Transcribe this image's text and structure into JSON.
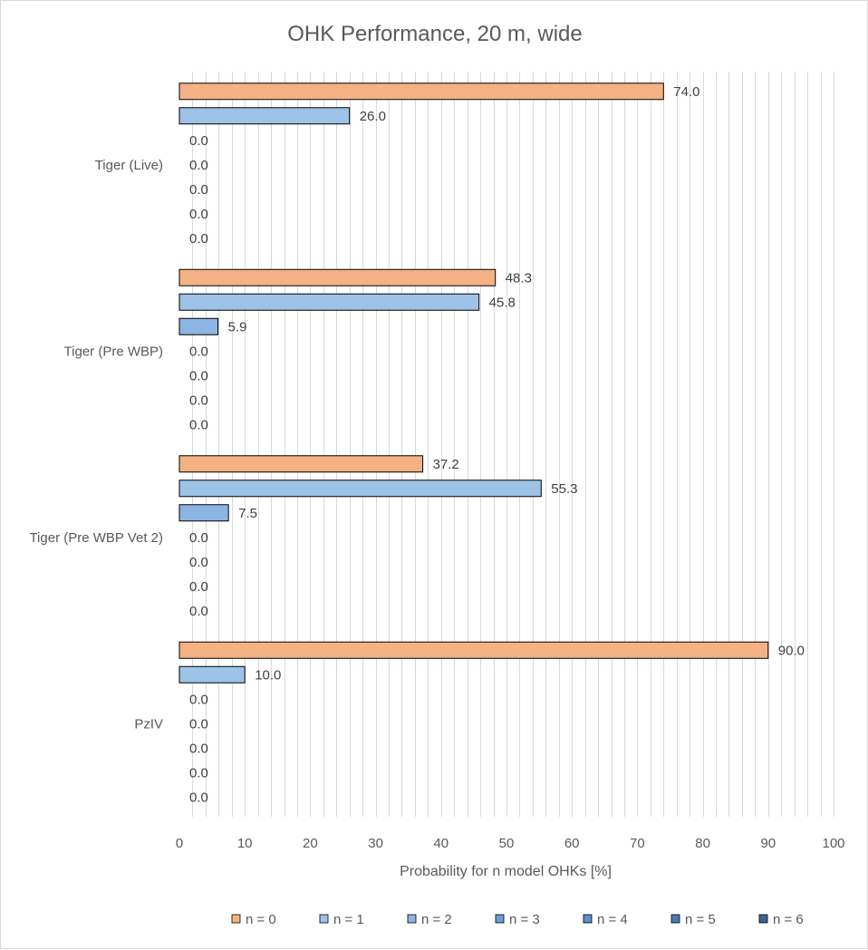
{
  "chart_data": {
    "type": "bar",
    "orientation": "horizontal",
    "title": "OHK Performance,  20 m, wide",
    "xlabel": "Probability for n model OHKs [%]",
    "ylabel": "",
    "xlim": [
      0,
      100
    ],
    "x_ticks": [
      0,
      10,
      20,
      30,
      40,
      50,
      60,
      70,
      80,
      90,
      100
    ],
    "grid": true,
    "legend_position": "bottom",
    "categories": [
      "Tiger (Live)",
      "Tiger (Pre WBP)",
      "Tiger (Pre WBP Vet 2)",
      "PzIV"
    ],
    "series": [
      {
        "name": "n = 0",
        "color": "#f4b183",
        "values": [
          74.0,
          48.3,
          37.2,
          90.0
        ],
        "labels": [
          "74.0",
          "48.3",
          "37.2",
          "90.0"
        ]
      },
      {
        "name": "n = 1",
        "color": "#9dc3e6",
        "values": [
          26.0,
          45.8,
          55.3,
          10.0
        ],
        "labels": [
          "26.0",
          "45.8",
          "55.3",
          "10.0"
        ]
      },
      {
        "name": "n = 2",
        "color": "#8eb4e3",
        "values": [
          0.0,
          5.9,
          7.5,
          0.0
        ],
        "labels": [
          "0.0",
          "5.9",
          "7.5",
          "0.0"
        ]
      },
      {
        "name": "n = 3",
        "color": "#6a9fd4",
        "values": [
          0.0,
          0.0,
          0.0,
          0.0
        ],
        "labels": [
          "0.0",
          "0.0",
          "0.0",
          "0.0"
        ]
      },
      {
        "name": "n = 4",
        "color": "#5b8fc9",
        "values": [
          0.0,
          0.0,
          0.0,
          0.0
        ],
        "labels": [
          "0.0",
          "0.0",
          "0.0",
          "0.0"
        ]
      },
      {
        "name": "n = 5",
        "color": "#4a7ab3",
        "values": [
          0.0,
          0.0,
          0.0,
          0.0
        ],
        "labels": [
          "0.0",
          "0.0",
          "0.0",
          "0.0"
        ]
      },
      {
        "name": "n = 6",
        "color": "#3a6491",
        "values": [
          0.0,
          0.0,
          0.0,
          0.0
        ],
        "labels": [
          "0.0",
          "0.0",
          "0.0",
          "0.0"
        ]
      }
    ]
  }
}
